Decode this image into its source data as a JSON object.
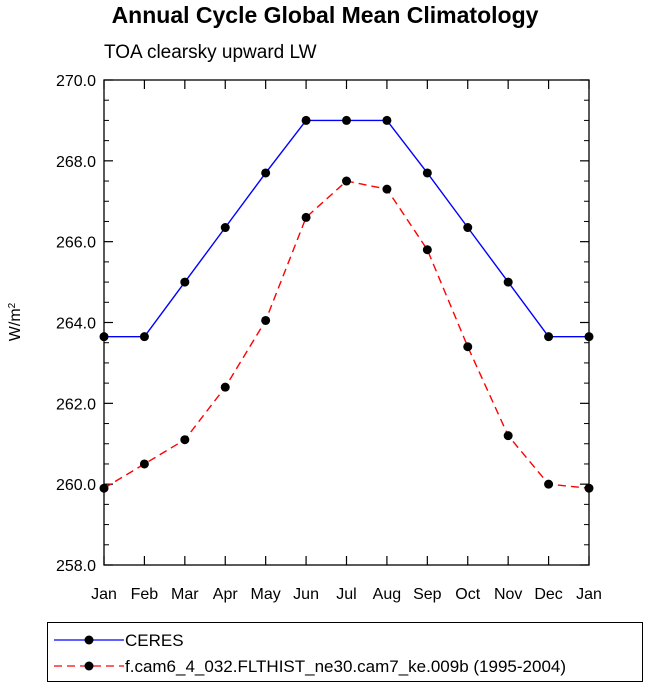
{
  "title": "Annual Cycle Global Mean Climatology",
  "subtitle": "TOA clearsky upward LW",
  "chart_data": {
    "type": "line",
    "title": "Annual Cycle Global Mean Climatology",
    "subtitle": "TOA clearsky upward LW",
    "xlabel": "",
    "ylabel": "W/m",
    "ylabel_superscript": "2",
    "ylim": [
      258.0,
      270.0
    ],
    "yticks": [
      "258.0",
      "260.0",
      "262.0",
      "264.0",
      "266.0",
      "268.0",
      "270.0"
    ],
    "categories": [
      "Jan",
      "Feb",
      "Mar",
      "Apr",
      "May",
      "Jun",
      "Jul",
      "Aug",
      "Sep",
      "Oct",
      "Nov",
      "Dec",
      "Jan"
    ],
    "series": [
      {
        "name": "CERES",
        "color": "#0000ff",
        "line_style": "solid",
        "marker": "filled-circle",
        "values": [
          263.65,
          263.65,
          265.0,
          266.35,
          267.7,
          269.0,
          269.0,
          269.0,
          267.7,
          266.35,
          265.0,
          263.65,
          263.65
        ]
      },
      {
        "name": "f.cam6_4_032.FLTHIST_ne30.cam7_ke.009b (1995-2004)",
        "color": "#ff0000",
        "line_style": "dashed",
        "marker": "filled-circle",
        "values": [
          259.9,
          260.5,
          261.1,
          262.4,
          264.05,
          266.6,
          267.5,
          267.3,
          265.8,
          263.4,
          261.2,
          260.0,
          259.9
        ]
      }
    ],
    "legend_position": "bottom"
  }
}
